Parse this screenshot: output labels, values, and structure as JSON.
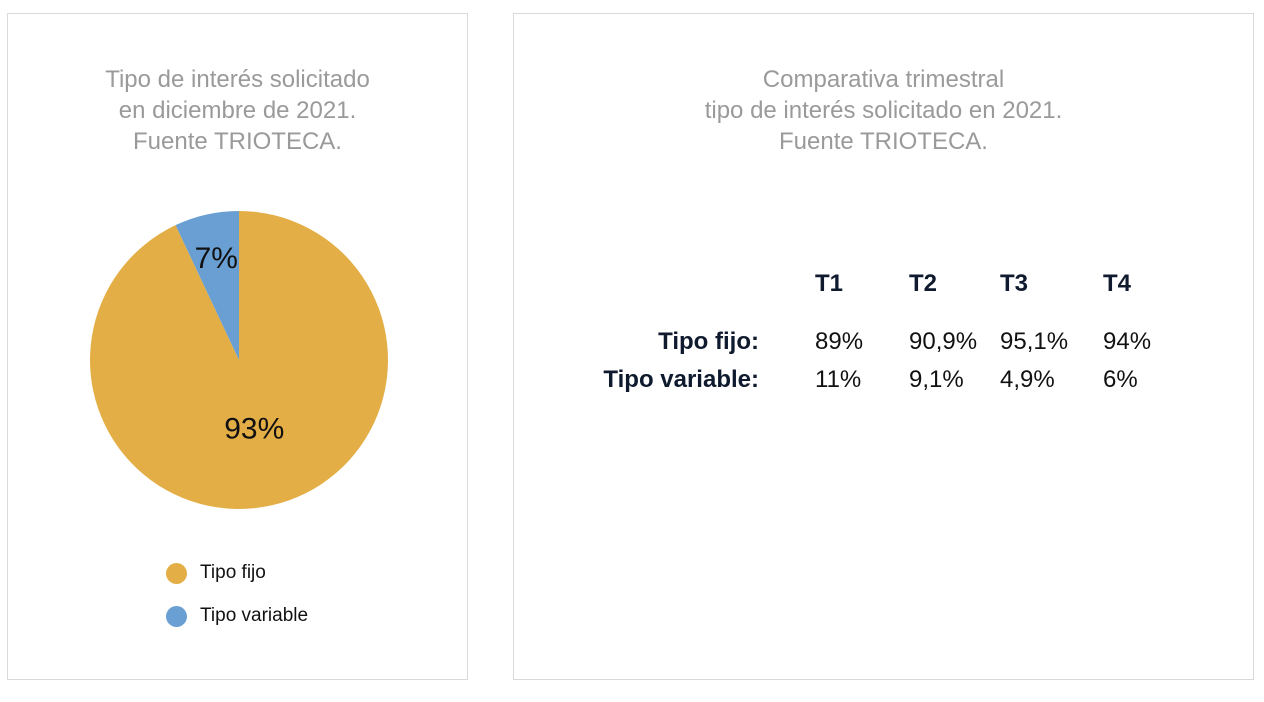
{
  "chart_data": [
    {
      "type": "pie",
      "title_lines": [
        "Tipo de interés solicitado",
        "en diciembre de 2021.",
        "Fuente TRIOTECA."
      ],
      "slices": [
        {
          "name": "Tipo fijo",
          "value": 93,
          "label": "93%",
          "color": "#e4ae46"
        },
        {
          "name": "Tipo variable",
          "value": 7,
          "label": "7%",
          "color": "#6a9fd3"
        }
      ],
      "legend": {
        "placement": "bottom",
        "items": [
          "Tipo fijo",
          "Tipo variable"
        ]
      }
    },
    {
      "type": "table",
      "title_lines": [
        "Comparativa trimestral",
        "tipo de interés solicitado en 2021.",
        "Fuente TRIOTECA."
      ],
      "columns": [
        "T1",
        "T2",
        "T3",
        "T4"
      ],
      "rows": [
        {
          "label": "Tipo fijo:",
          "values": [
            "89%",
            "90,9%",
            "95,1%",
            "94%"
          ]
        },
        {
          "label": "Tipo variable:",
          "values": [
            "11%",
            "9,1%",
            "4,9%",
            "6%"
          ]
        }
      ]
    }
  ]
}
